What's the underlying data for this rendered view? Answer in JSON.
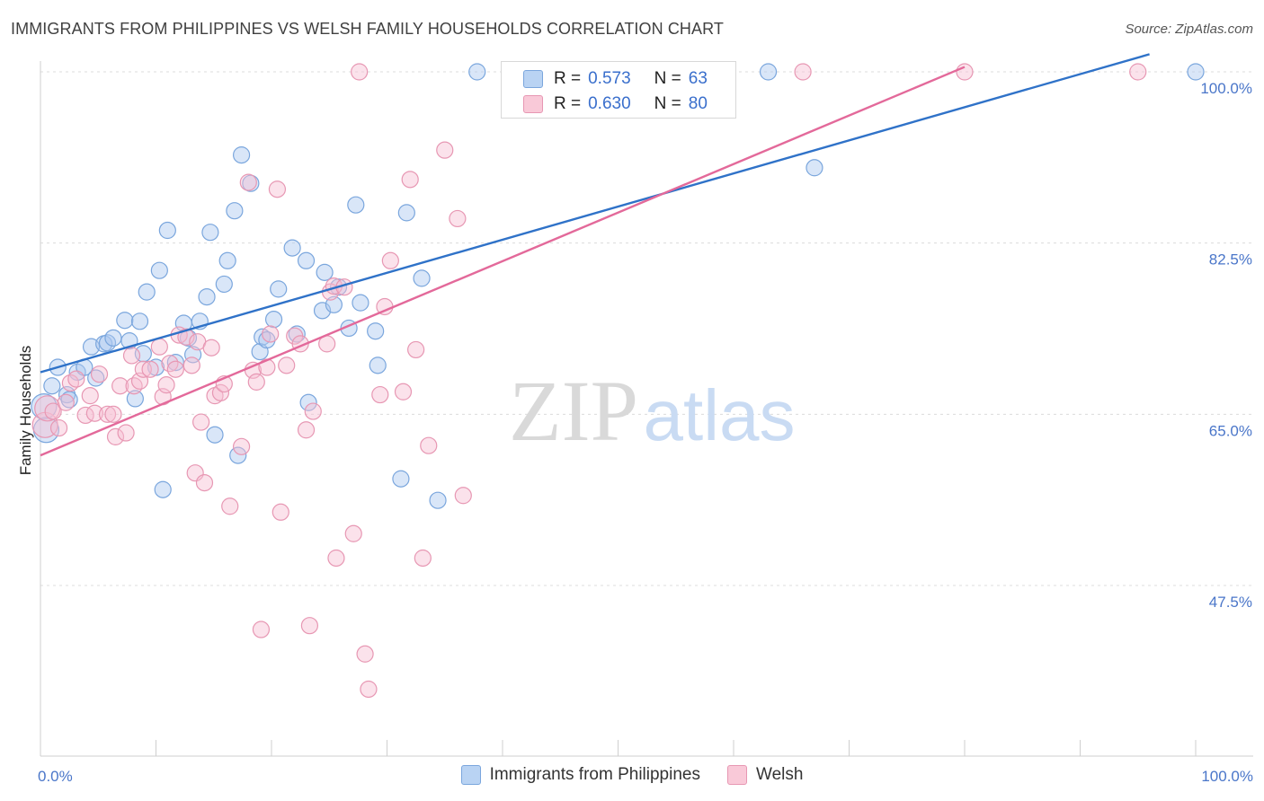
{
  "header": {
    "title": "IMMIGRANTS FROM PHILIPPINES VS WELSH FAMILY HOUSEHOLDS CORRELATION CHART",
    "source": "Source: ZipAtlas.com"
  },
  "watermark": {
    "zip": "ZIP",
    "atlas": "atlas"
  },
  "stats": [
    {
      "r_label": "R =",
      "r_value": "0.573",
      "n_label": "N =",
      "n_value": "63",
      "color": "#a9c8f0",
      "border": "#6f9ed8"
    },
    {
      "r_label": "R =",
      "r_value": "0.630",
      "n_label": "N =",
      "n_value": "80",
      "color": "#f6bcd0",
      "border": "#e58aab"
    }
  ],
  "legend": [
    {
      "label": "Immigrants from Philippines",
      "color": "#b9d3f3",
      "border": "#7aa6dd"
    },
    {
      "label": "Welsh",
      "color": "#f9c9d8",
      "border": "#e797b3"
    }
  ],
  "chart_data": {
    "type": "scatter",
    "title": "IMMIGRANTS FROM PHILIPPINES VS WELSH FAMILY HOUSEHOLDS CORRELATION CHART",
    "xlabel": "",
    "ylabel": "Family Households",
    "xlim": [
      0,
      105
    ],
    "ylim": [
      32,
      102
    ],
    "x_tick_labels": [
      {
        "value": 0,
        "label": "0.0%"
      },
      {
        "value": 100,
        "label": "100.0%"
      }
    ],
    "y_tick_labels": [
      {
        "value": 100,
        "label": "100.0%"
      },
      {
        "value": 82.5,
        "label": "82.5%"
      },
      {
        "value": 65,
        "label": "65.0%"
      },
      {
        "value": 47.5,
        "label": "47.5%"
      }
    ],
    "grid": true,
    "legend_position": "bottom-center",
    "series": [
      {
        "name": "Immigrants from Philippines",
        "color": "#7aa6dd",
        "fill": "rgba(170,199,240,0.45)",
        "line_color": "#2f72c8",
        "trend": {
          "x": [
            0,
            96
          ],
          "y": [
            69.3,
            101.8
          ]
        },
        "points": [
          [
            0.3,
            65.8
          ],
          [
            0.5,
            63.4
          ],
          [
            1.0,
            67.9
          ],
          [
            1.5,
            69.8
          ],
          [
            2.3,
            67.0
          ],
          [
            2.5,
            66.5
          ],
          [
            3.2,
            69.3
          ],
          [
            3.8,
            69.8
          ],
          [
            4.4,
            71.9
          ],
          [
            4.8,
            68.7
          ],
          [
            5.5,
            72.2
          ],
          [
            5.8,
            72.3
          ],
          [
            6.3,
            72.8
          ],
          [
            7.3,
            74.6
          ],
          [
            7.7,
            72.5
          ],
          [
            8.2,
            66.6
          ],
          [
            8.6,
            74.5
          ],
          [
            8.9,
            71.2
          ],
          [
            9.2,
            77.5
          ],
          [
            10.0,
            69.8
          ],
          [
            10.3,
            79.7
          ],
          [
            10.6,
            57.3
          ],
          [
            11.0,
            83.8
          ],
          [
            11.7,
            70.3
          ],
          [
            12.4,
            74.3
          ],
          [
            12.8,
            72.8
          ],
          [
            13.2,
            71.1
          ],
          [
            13.8,
            74.5
          ],
          [
            14.4,
            77.0
          ],
          [
            14.7,
            83.6
          ],
          [
            15.1,
            62.9
          ],
          [
            15.9,
            78.3
          ],
          [
            16.2,
            80.7
          ],
          [
            16.8,
            85.8
          ],
          [
            17.1,
            60.8
          ],
          [
            17.4,
            91.5
          ],
          [
            18.2,
            88.6
          ],
          [
            19.0,
            71.4
          ],
          [
            19.2,
            72.9
          ],
          [
            19.6,
            72.6
          ],
          [
            20.2,
            74.7
          ],
          [
            20.6,
            77.8
          ],
          [
            21.8,
            82.0
          ],
          [
            22.2,
            73.2
          ],
          [
            23.0,
            80.7
          ],
          [
            23.2,
            66.2
          ],
          [
            24.4,
            75.6
          ],
          [
            24.6,
            79.5
          ],
          [
            25.4,
            76.2
          ],
          [
            25.8,
            78.0
          ],
          [
            26.7,
            73.8
          ],
          [
            27.3,
            86.4
          ],
          [
            27.7,
            76.4
          ],
          [
            29.0,
            73.5
          ],
          [
            29.2,
            70.0
          ],
          [
            31.2,
            58.4
          ],
          [
            31.7,
            85.6
          ],
          [
            33.0,
            78.9
          ],
          [
            34.4,
            56.2
          ],
          [
            37.8,
            100.0
          ],
          [
            63.0,
            100.0
          ],
          [
            67.0,
            90.2
          ],
          [
            100.0,
            100.0
          ]
        ]
      },
      {
        "name": "Welsh",
        "color": "#e797b3",
        "fill": "rgba(247,190,211,0.45)",
        "line_color": "#e3699a",
        "trend": {
          "x": [
            0,
            80
          ],
          "y": [
            60.8,
            100.5
          ]
        },
        "points": [
          [
            0.4,
            63.9
          ],
          [
            0.6,
            65.6
          ],
          [
            1.1,
            65.3
          ],
          [
            1.6,
            63.6
          ],
          [
            2.2,
            66.2
          ],
          [
            2.6,
            68.2
          ],
          [
            3.1,
            68.6
          ],
          [
            3.9,
            64.9
          ],
          [
            4.3,
            66.9
          ],
          [
            4.7,
            65.1
          ],
          [
            5.1,
            69.1
          ],
          [
            5.8,
            65.0
          ],
          [
            6.3,
            65.0
          ],
          [
            6.5,
            62.7
          ],
          [
            6.9,
            67.9
          ],
          [
            7.4,
            63.1
          ],
          [
            7.9,
            71.0
          ],
          [
            8.1,
            67.9
          ],
          [
            8.6,
            68.4
          ],
          [
            8.9,
            69.6
          ],
          [
            9.5,
            69.6
          ],
          [
            10.3,
            71.9
          ],
          [
            10.6,
            66.8
          ],
          [
            10.9,
            68.0
          ],
          [
            11.2,
            70.2
          ],
          [
            11.7,
            69.6
          ],
          [
            12.0,
            73.1
          ],
          [
            12.6,
            72.9
          ],
          [
            13.1,
            70.0
          ],
          [
            13.4,
            59.0
          ],
          [
            13.6,
            72.4
          ],
          [
            13.9,
            64.2
          ],
          [
            14.2,
            58.0
          ],
          [
            14.8,
            71.8
          ],
          [
            15.1,
            66.9
          ],
          [
            15.6,
            67.2
          ],
          [
            15.9,
            68.1
          ],
          [
            16.4,
            55.6
          ],
          [
            17.4,
            61.7
          ],
          [
            18.0,
            88.7
          ],
          [
            18.4,
            69.5
          ],
          [
            18.7,
            68.3
          ],
          [
            19.1,
            43.0
          ],
          [
            19.6,
            69.8
          ],
          [
            19.9,
            73.2
          ],
          [
            20.5,
            88.0
          ],
          [
            20.8,
            55.0
          ],
          [
            21.3,
            70.0
          ],
          [
            22.0,
            73.0
          ],
          [
            22.5,
            72.2
          ],
          [
            23.0,
            63.4
          ],
          [
            23.3,
            43.4
          ],
          [
            23.6,
            65.3
          ],
          [
            24.8,
            72.2
          ],
          [
            25.1,
            77.5
          ],
          [
            25.4,
            78.1
          ],
          [
            25.6,
            50.3
          ],
          [
            26.3,
            78.0
          ],
          [
            27.1,
            52.8
          ],
          [
            27.6,
            100.0
          ],
          [
            28.1,
            40.5
          ],
          [
            28.4,
            36.9
          ],
          [
            29.4,
            67.0
          ],
          [
            29.8,
            76.0
          ],
          [
            30.3,
            80.7
          ],
          [
            31.4,
            67.3
          ],
          [
            32.0,
            89.0
          ],
          [
            32.5,
            71.6
          ],
          [
            33.1,
            50.3
          ],
          [
            33.6,
            61.8
          ],
          [
            35.0,
            92.0
          ],
          [
            36.1,
            85.0
          ],
          [
            36.6,
            56.7
          ],
          [
            48.0,
            100.0
          ],
          [
            50.0,
            100.0
          ],
          [
            53.0,
            100.0
          ],
          [
            59.0,
            100.0
          ],
          [
            66.0,
            100.0
          ],
          [
            80.0,
            100.0
          ],
          [
            95.0,
            100.0
          ]
        ]
      }
    ]
  }
}
